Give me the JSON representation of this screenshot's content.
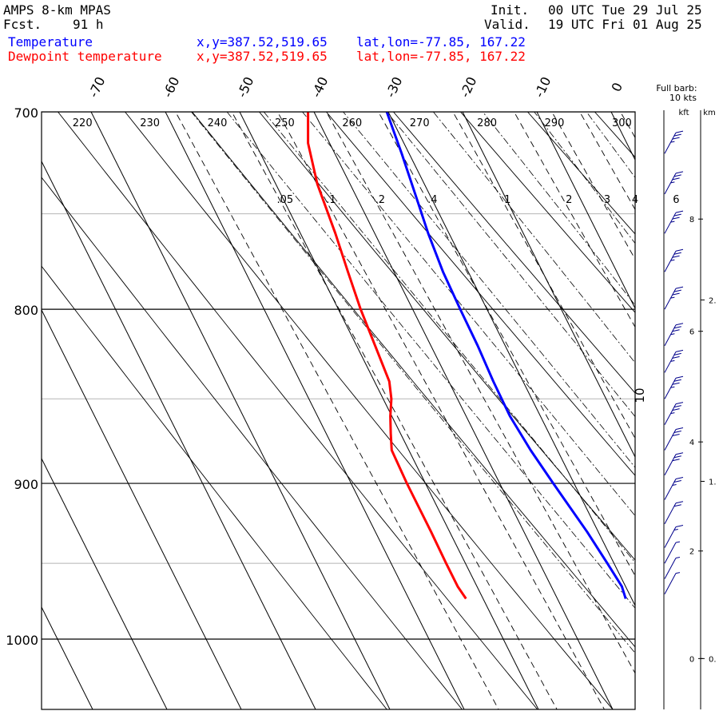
{
  "header": {
    "model": "AMPS 8-km MPAS",
    "fcst_label": "Fcst.",
    "fcst_value": "91 h",
    "init_label": "Init.",
    "init_value": "00 UTC Tue 29 Jul 25",
    "valid_label": "Valid.",
    "valid_value": "19 UTC Fri 01 Aug 25"
  },
  "legend": [
    {
      "name": "Temperature",
      "xy": "x,y=387.52,519.65",
      "latlon": "lat,lon=-77.85, 167.22",
      "color": "#0000ff"
    },
    {
      "name": "Dewpoint temperature",
      "xy": "x,y=387.52,519.65",
      "latlon": "lat,lon=-77.85, 167.22",
      "color": "#ff0000"
    }
  ],
  "wind_header": {
    "line1": "Full barb:",
    "line2": "10 kts",
    "kft": "kft",
    "km": "km"
  },
  "chart_data": {
    "type": "line",
    "subtype": "skew-T log-P",
    "pressure_ticks": [
      700,
      800,
      900,
      1000
    ],
    "ylim": [
      1050,
      700
    ],
    "temperature_ticks": [
      -70,
      -60,
      -50,
      -40,
      -30,
      -20,
      -10,
      0
    ],
    "theta_labels": [
      220,
      230,
      240,
      250,
      260,
      270,
      280,
      290,
      300
    ],
    "mixing_ratio_labels": [
      ".05",
      ".1",
      ".2",
      ".4",
      "1",
      "2",
      "3",
      "4",
      "6"
    ],
    "mixing_ratio_values": [
      0.05,
      0.1,
      0.2,
      0.4,
      1,
      2,
      3,
      4,
      6
    ],
    "extra_label": "10",
    "kft_ticks": [
      0,
      2,
      4,
      6,
      8
    ],
    "km_ticks": [
      "0.",
      "1.",
      "2."
    ],
    "grid": true,
    "series": [
      {
        "name": "Temperature",
        "color": "#0000ff",
        "points": [
          [
            973,
            -30.8
          ],
          [
            965,
            -30.5
          ],
          [
            950,
            -30.9
          ],
          [
            930,
            -31.5
          ],
          [
            900,
            -32.8
          ],
          [
            880,
            -33.6
          ],
          [
            860,
            -34.1
          ],
          [
            840,
            -34.0
          ],
          [
            820,
            -33.7
          ],
          [
            800,
            -33.6
          ],
          [
            780,
            -33.4
          ],
          [
            760,
            -32.8
          ],
          [
            740,
            -31.9
          ],
          [
            720,
            -31.0
          ],
          [
            700,
            -30.2
          ]
        ]
      },
      {
        "name": "Dewpoint temperature",
        "color": "#ff0000",
        "points": [
          [
            973,
            -52.3
          ],
          [
            965,
            -52.6
          ],
          [
            950,
            -52.6
          ],
          [
            930,
            -52.5
          ],
          [
            900,
            -52.5
          ],
          [
            880,
            -52.3
          ],
          [
            870,
            -51.3
          ],
          [
            860,
            -50.2
          ],
          [
            850,
            -48.9
          ],
          [
            840,
            -48.0
          ],
          [
            820,
            -47.5
          ],
          [
            800,
            -47.0
          ],
          [
            780,
            -46.2
          ],
          [
            760,
            -45.3
          ],
          [
            735,
            -44.4
          ],
          [
            715,
            -42.9
          ],
          [
            700,
            -40.8
          ]
        ]
      }
    ],
    "wind_barbs": [
      {
        "p": 970,
        "speed_kts": 5
      },
      {
        "p": 960,
        "speed_kts": 5
      },
      {
        "p": 950,
        "speed_kts": 8
      },
      {
        "p": 940,
        "speed_kts": 15
      },
      {
        "p": 925,
        "speed_kts": 20
      },
      {
        "p": 910,
        "speed_kts": 25
      },
      {
        "p": 895,
        "speed_kts": 30
      },
      {
        "p": 880,
        "speed_kts": 30
      },
      {
        "p": 865,
        "speed_kts": 35
      },
      {
        "p": 850,
        "speed_kts": 35
      },
      {
        "p": 835,
        "speed_kts": 35
      },
      {
        "p": 820,
        "speed_kts": 35
      },
      {
        "p": 800,
        "speed_kts": 35
      },
      {
        "p": 780,
        "speed_kts": 35
      },
      {
        "p": 760,
        "speed_kts": 35
      },
      {
        "p": 740,
        "speed_kts": 35
      },
      {
        "p": 720,
        "speed_kts": 35
      }
    ]
  }
}
